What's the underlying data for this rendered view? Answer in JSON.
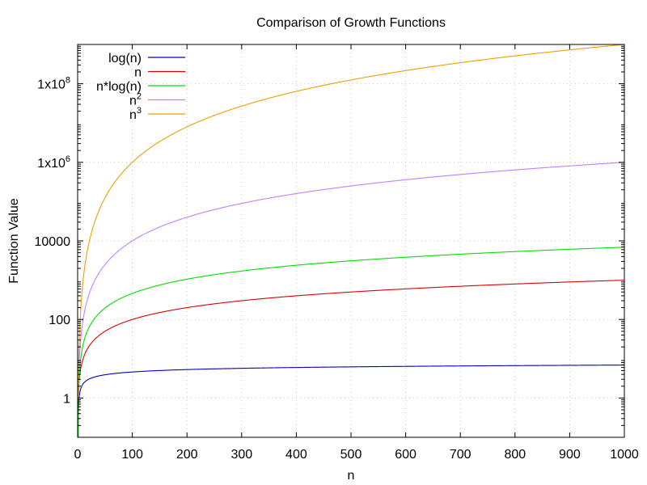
{
  "chart_data": {
    "type": "line",
    "title": "Comparison of Growth Functions",
    "xlabel": "n",
    "ylabel": "Function Value",
    "xlim": [
      0,
      1000
    ],
    "ylim": [
      0.1,
      1000000000
    ],
    "yscale": "log",
    "grid": true,
    "legend_position": "top-left",
    "x_ticks": [
      0,
      100,
      200,
      300,
      400,
      500,
      600,
      700,
      800,
      900,
      1000
    ],
    "x_tick_labels": [
      "0",
      "100",
      "200",
      "300",
      "400",
      "500",
      "600",
      "700",
      "800",
      "900",
      "1000"
    ],
    "y_ticks": [
      {
        "value": 1,
        "base": "1",
        "sup": ""
      },
      {
        "value": 100,
        "base": "100",
        "sup": ""
      },
      {
        "value": 10000,
        "base": "10000",
        "sup": ""
      },
      {
        "value": 1000000,
        "base": "1x10",
        "sup": "6"
      },
      {
        "value": 100000000,
        "base": "1x10",
        "sup": "8"
      }
    ],
    "series": [
      {
        "name": "log(n)",
        "name_sup": "",
        "color": "#0000cc",
        "function": "log",
        "x": [
          1,
          2,
          5,
          10,
          20,
          50,
          100,
          200,
          500,
          1000
        ],
        "y": [
          0,
          0.693,
          1.609,
          2.303,
          2.996,
          3.912,
          4.605,
          5.298,
          6.215,
          6.908
        ]
      },
      {
        "name": "n",
        "name_sup": "",
        "color": "#dd0000",
        "function": "n",
        "x": [
          1,
          10,
          100,
          500,
          1000
        ],
        "y": [
          1,
          10,
          100,
          500,
          1000
        ]
      },
      {
        "name": "n*log(n)",
        "name_sup": "",
        "color": "#00dd00",
        "function": "nlogn",
        "x": [
          1,
          10,
          100,
          500,
          1000
        ],
        "y": [
          0,
          23.03,
          460.5,
          3107,
          6908
        ]
      },
      {
        "name": "n",
        "name_sup": "2",
        "color": "#c080ff",
        "function": "n2",
        "x": [
          1,
          10,
          100,
          500,
          1000
        ],
        "y": [
          1,
          100,
          10000,
          250000,
          1000000
        ]
      },
      {
        "name": "n",
        "name_sup": "3",
        "color": "#e8a000",
        "function": "n3",
        "x": [
          1,
          10,
          100,
          500,
          1000
        ],
        "y": [
          1,
          1000,
          1000000,
          125000000,
          1000000000
        ]
      }
    ]
  }
}
